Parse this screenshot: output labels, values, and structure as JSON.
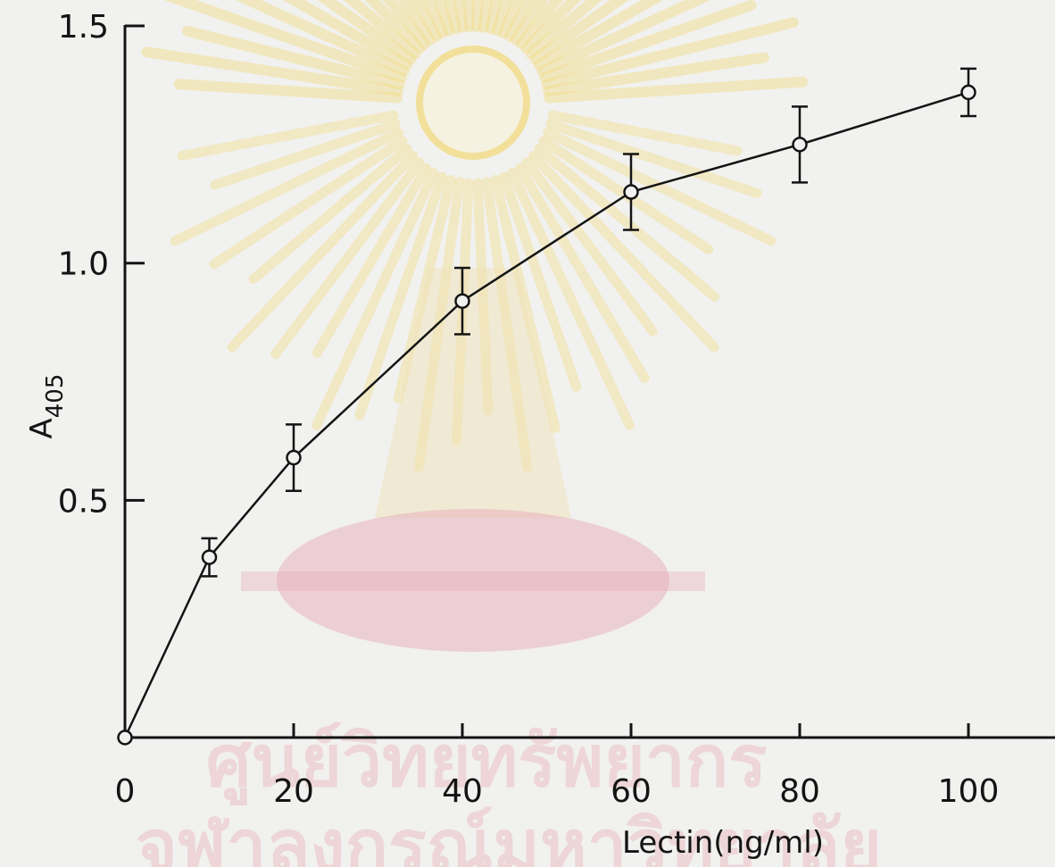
{
  "chart_data": {
    "type": "line",
    "xlabel": "Lectin(ng/ml)",
    "ylabel": "A",
    "ylabel_subscript": "405",
    "xlim": [
      0,
      105
    ],
    "ylim": [
      0,
      1.5
    ],
    "x_ticks": [
      0,
      20,
      40,
      60,
      80,
      100
    ],
    "x_tick_labels": [
      "0",
      "20",
      "40",
      "60",
      "80",
      "100"
    ],
    "y_ticks": [
      0.5,
      1.0,
      1.5
    ],
    "y_tick_labels": [
      "0.5",
      "1.0",
      "1.5"
    ],
    "grid": false,
    "series": [
      {
        "x": [
          0,
          10,
          20,
          40,
          60,
          80,
          100
        ],
        "y": [
          0.0,
          0.38,
          0.59,
          0.92,
          1.15,
          1.25,
          1.36
        ],
        "err": [
          0,
          0.04,
          0.07,
          0.07,
          0.08,
          0.08,
          0.05
        ],
        "marker": "open-circle",
        "color": "#141414"
      }
    ]
  },
  "watermark": {
    "text_line1": "ศูนย์วิทยทรัพยากร",
    "text_line2": "จุฬาลงกรณ์มหาวิทยาลัย",
    "colors": {
      "rays": "#f3dc86",
      "base": "#e7a6b4",
      "text": "#e8a2ae"
    }
  }
}
